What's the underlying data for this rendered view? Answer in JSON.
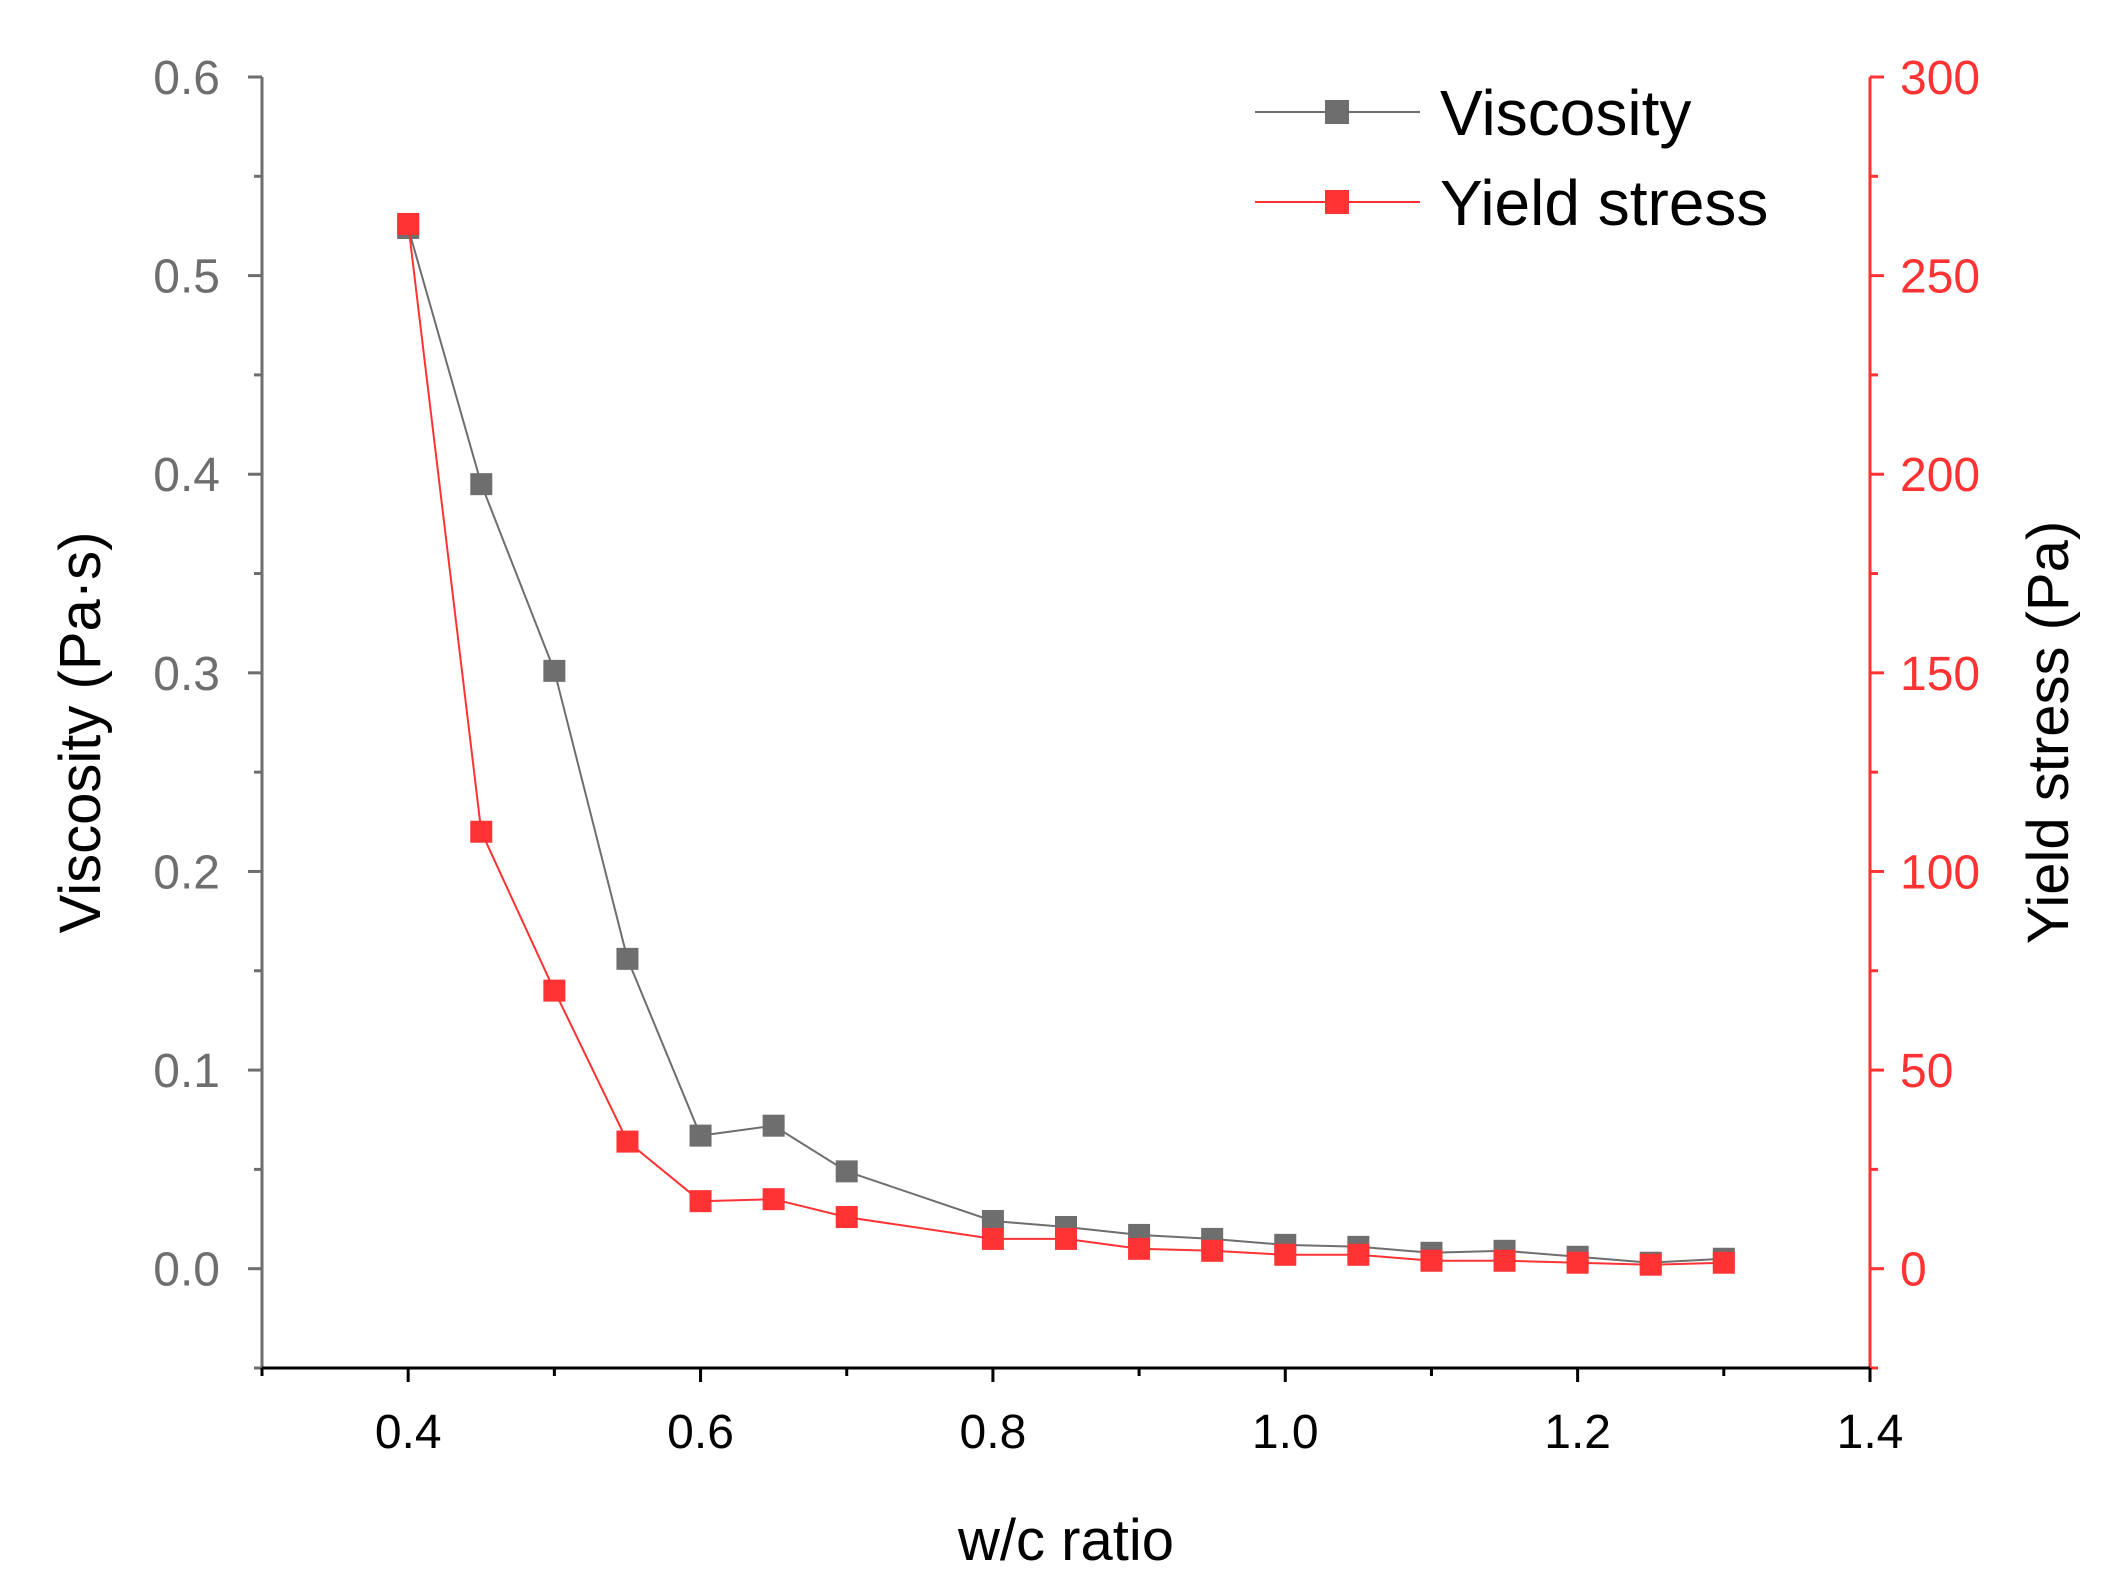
{
  "chart_data": {
    "type": "line",
    "title": "",
    "xlabel": "w/c ratio",
    "ylabel": "Viscosity (Pa·s)",
    "y2label": "Yield stress (Pa)",
    "xlim": [
      0.3,
      1.4
    ],
    "ylim": [
      -0.05,
      0.6
    ],
    "y2lim": [
      -25,
      300
    ],
    "x_ticks": [
      "0.4",
      "0.6",
      "0.8",
      "1.0",
      "1.2",
      "1.4"
    ],
    "x_tick_values": [
      0.4,
      0.6,
      0.8,
      1.0,
      1.2,
      1.4
    ],
    "y_ticks": [
      "0.0",
      "0.1",
      "0.2",
      "0.3",
      "0.4",
      "0.5",
      "0.6"
    ],
    "y_tick_values": [
      0.0,
      0.1,
      0.2,
      0.3,
      0.4,
      0.5,
      0.6
    ],
    "y2_ticks": [
      "0",
      "50",
      "100",
      "150",
      "200",
      "250",
      "300"
    ],
    "y2_tick_values": [
      0,
      50,
      100,
      150,
      200,
      250,
      300
    ],
    "legend_position": "top-right",
    "colors": {
      "viscosity": "#6e6e6e",
      "yield": "#ff3333",
      "left_axis": "#6e6e6e",
      "right_axis": "#ff3333"
    },
    "series": [
      {
        "name": "Viscosity",
        "axis": "left",
        "x": [
          0.4,
          0.45,
          0.5,
          0.55,
          0.6,
          0.65,
          0.7,
          0.8,
          0.85,
          0.9,
          0.95,
          1.0,
          1.05,
          1.1,
          1.15,
          1.2,
          1.25,
          1.3
        ],
        "values": [
          0.524,
          0.395,
          0.301,
          0.156,
          0.067,
          0.072,
          0.049,
          0.024,
          0.021,
          0.017,
          0.015,
          0.012,
          0.011,
          0.008,
          0.009,
          0.006,
          0.003,
          0.005
        ]
      },
      {
        "name": "Yield stress",
        "axis": "right",
        "x": [
          0.4,
          0.45,
          0.5,
          0.55,
          0.6,
          0.65,
          0.7,
          0.8,
          0.85,
          0.9,
          0.95,
          1.0,
          1.05,
          1.1,
          1.15,
          1.2,
          1.25,
          1.3
        ],
        "values": [
          263,
          110,
          70,
          32,
          17,
          17.5,
          13,
          7.5,
          7.5,
          5,
          4.5,
          3.5,
          3.5,
          2,
          2,
          1.5,
          1,
          1.5
        ]
      }
    ]
  }
}
